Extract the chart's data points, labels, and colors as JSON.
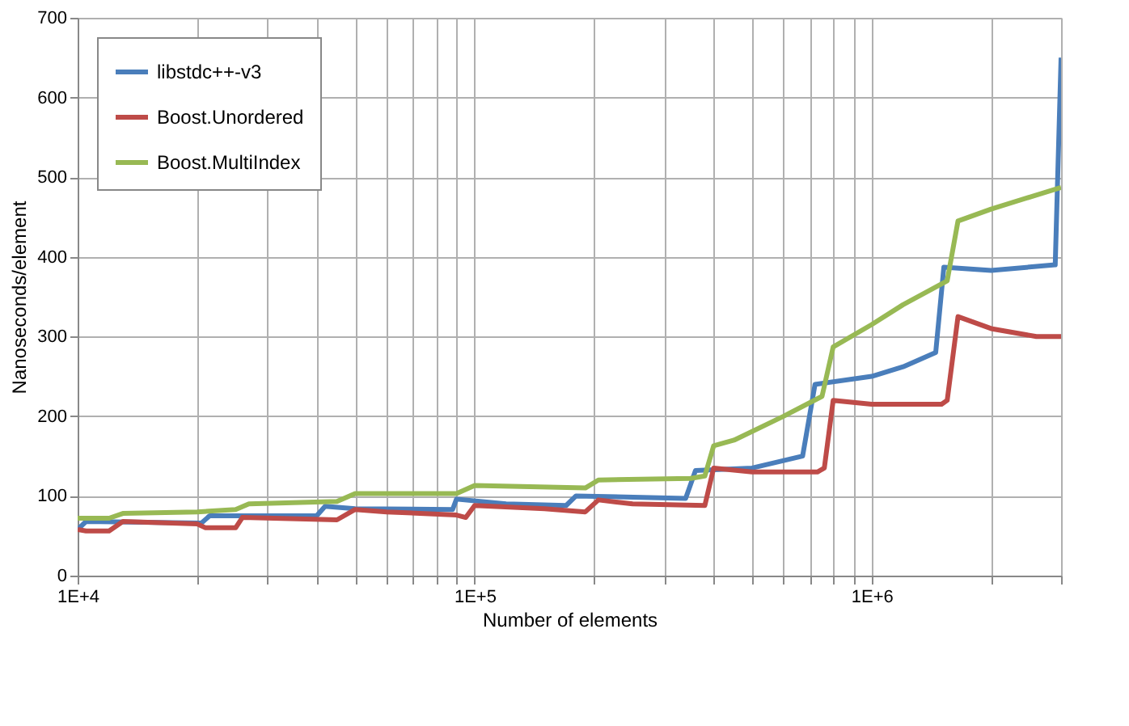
{
  "chart_data": {
    "type": "line",
    "xlabel": "Number of elements",
    "ylabel": "Nanoseconds/element",
    "log": "x",
    "grid": true,
    "legend": "top left",
    "marker": "none",
    "line_style": "solid",
    "xlim": [
      10000,
      3000000
    ],
    "ylim": [
      0,
      700
    ],
    "xticks": [
      {
        "value": 10000,
        "label": "1E+4"
      },
      {
        "value": 20000,
        "label": null
      },
      {
        "value": 30000,
        "label": null
      },
      {
        "value": 40000,
        "label": null
      },
      {
        "value": 50000,
        "label": null
      },
      {
        "value": 60000,
        "label": null
      },
      {
        "value": 70000,
        "label": null
      },
      {
        "value": 80000,
        "label": null
      },
      {
        "value": 90000,
        "label": null
      },
      {
        "value": 100000,
        "label": "1E+5"
      },
      {
        "value": 200000,
        "label": null
      },
      {
        "value": 300000,
        "label": null
      },
      {
        "value": 400000,
        "label": null
      },
      {
        "value": 500000,
        "label": null
      },
      {
        "value": 600000,
        "label": null
      },
      {
        "value": 700000,
        "label": null
      },
      {
        "value": 800000,
        "label": null
      },
      {
        "value": 900000,
        "label": null
      },
      {
        "value": 1000000,
        "label": "1E+6"
      },
      {
        "value": 2000000,
        "label": null
      },
      {
        "value": 3000000,
        "label": null
      }
    ],
    "yticks": [
      0,
      100,
      200,
      300,
      400,
      500,
      600,
      700
    ],
    "series": [
      {
        "name": "libstdc++-v3",
        "color": "#4a7ebb",
        "x": [
          10000,
          10500,
          20500,
          21500,
          40000,
          42000,
          50000,
          88000,
          90000,
          120000,
          170000,
          180000,
          340000,
          360000,
          500000,
          670000,
          720000,
          1000000,
          1200000,
          1450000,
          1520000,
          2000000,
          2900000,
          3000000
        ],
        "values": [
          58,
          68,
          66,
          75,
          75,
          87,
          84,
          83,
          96,
          90,
          88,
          100,
          97,
          132,
          135,
          150,
          240,
          250,
          262,
          280,
          387,
          383,
          390,
          650
        ]
      },
      {
        "name": "Boost.Unordered",
        "color": "#be4b48",
        "x": [
          10000,
          10500,
          12000,
          13000,
          20000,
          21000,
          25000,
          26000,
          45000,
          50000,
          60000,
          90000,
          95000,
          100000,
          150000,
          190000,
          205000,
          250000,
          380000,
          400000,
          500000,
          730000,
          760000,
          800000,
          1000000,
          1500000,
          1550000,
          1650000,
          2000000,
          2600000,
          3000000
        ],
        "values": [
          58,
          56,
          56,
          68,
          65,
          60,
          60,
          73,
          70,
          83,
          80,
          76,
          73,
          88,
          84,
          80,
          95,
          90,
          88,
          135,
          130,
          130,
          135,
          220,
          215,
          215,
          220,
          325,
          310,
          300,
          300
        ]
      },
      {
        "name": "Boost.MultiIndex",
        "color": "#98b954",
        "x": [
          10000,
          12000,
          13000,
          20000,
          25000,
          27000,
          45000,
          50000,
          90000,
          100000,
          190000,
          205000,
          350000,
          380000,
          400000,
          450000,
          600000,
          750000,
          800000,
          1000000,
          1200000,
          1550000,
          1650000,
          2000000,
          2500000,
          3000000
        ],
        "values": [
          72,
          72,
          78,
          80,
          83,
          90,
          93,
          103,
          103,
          113,
          110,
          120,
          122,
          125,
          163,
          170,
          200,
          225,
          287,
          315,
          340,
          370,
          445,
          460,
          475,
          487
        ]
      }
    ]
  }
}
